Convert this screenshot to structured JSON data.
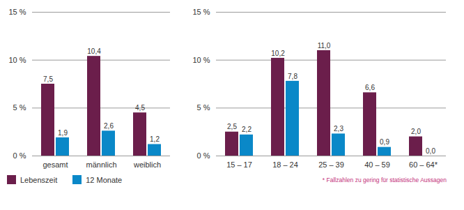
{
  "chart_data": {
    "type": "bar",
    "categories": [
      "gesamt",
      "männlich",
      "weiblich",
      null,
      "15 – 17",
      "18 – 24",
      "25 – 39",
      "40 – 59",
      "60 – 64*"
    ],
    "series": [
      {
        "name": "Lebenszeit",
        "color": "#6b1e4b",
        "values": [
          7.5,
          10.4,
          4.5,
          null,
          2.5,
          10.2,
          11.0,
          6.6,
          2.0
        ],
        "value_labels": [
          "7,5",
          "10,4",
          "4,5",
          null,
          "2,5",
          "10,2",
          "11,0",
          "6,6",
          "2,0"
        ]
      },
      {
        "name": "12 Monate",
        "color": "#0a88c8",
        "values": [
          1.9,
          2.6,
          1.2,
          null,
          2.2,
          7.8,
          2.3,
          0.9,
          0.0
        ],
        "value_labels": [
          "1,9",
          "2,6",
          "1,2",
          null,
          "2,2",
          "7,8",
          "2,3",
          "0,9",
          "0,0"
        ]
      }
    ],
    "ylim": [
      0,
      15
    ],
    "yticks": [
      {
        "value": 0,
        "label": "0 %"
      },
      {
        "value": 5,
        "label": "5 %"
      },
      {
        "value": 10,
        "label": "10 %"
      },
      {
        "value": 15,
        "label": "15 %"
      }
    ],
    "grid": true,
    "data_labels": true,
    "legend": "bottom-left",
    "annotations": [
      "* Fallzahlen zu gering für statistische Aussagen"
    ]
  }
}
